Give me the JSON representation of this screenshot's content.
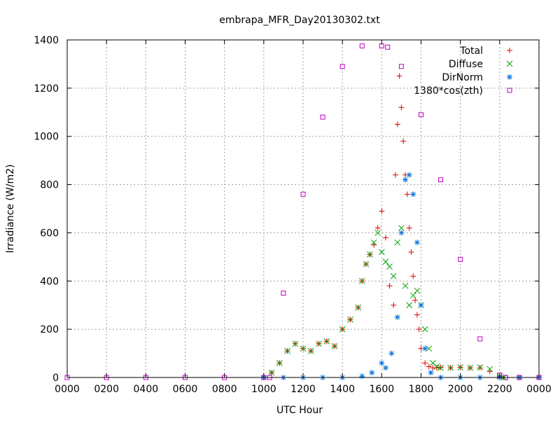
{
  "chart_data": {
    "type": "scatter",
    "title": "embrapa_MFR_Day20130302.txt",
    "xlabel": "UTC Hour",
    "ylabel": "Irradiance (W/m2)",
    "xlim": [
      0,
      24
    ],
    "ylim": [
      0,
      1400
    ],
    "grid": true,
    "legend_position": "top-right",
    "x_ticks": [
      {
        "value": 0,
        "label": "0000"
      },
      {
        "value": 2,
        "label": "0200"
      },
      {
        "value": 4,
        "label": "0400"
      },
      {
        "value": 6,
        "label": "0600"
      },
      {
        "value": 8,
        "label": "0800"
      },
      {
        "value": 10,
        "label": "1000"
      },
      {
        "value": 12,
        "label": "1200"
      },
      {
        "value": 14,
        "label": "1400"
      },
      {
        "value": 16,
        "label": "1600"
      },
      {
        "value": 18,
        "label": "1800"
      },
      {
        "value": 20,
        "label": "2000"
      },
      {
        "value": 22,
        "label": "2200"
      },
      {
        "value": 24,
        "label": "0000"
      }
    ],
    "y_ticks": [
      0,
      200,
      400,
      600,
      800,
      1000,
      1200,
      1400
    ],
    "series": [
      {
        "name": "Total",
        "marker": "+",
        "color": "#e00000",
        "x": [
          10.4,
          10.8,
          11.2,
          11.6,
          12.0,
          12.4,
          12.8,
          13.2,
          13.6,
          14.0,
          14.4,
          14.8,
          15.0,
          15.2,
          15.4,
          15.6,
          15.8,
          16.0,
          16.2,
          16.4,
          16.6,
          16.7,
          16.8,
          16.9,
          17.0,
          17.1,
          17.2,
          17.3,
          17.4,
          17.5,
          17.6,
          17.7,
          17.8,
          17.9,
          18.0,
          18.2,
          18.4,
          18.6,
          18.8,
          19.0,
          19.5,
          20.0,
          20.5,
          21.0,
          21.5,
          22.0,
          22.2
        ],
        "y": [
          20,
          60,
          110,
          140,
          120,
          110,
          140,
          150,
          130,
          200,
          240,
          290,
          400,
          470,
          510,
          550,
          620,
          690,
          580,
          380,
          300,
          840,
          1050,
          1250,
          1120,
          980,
          840,
          760,
          620,
          520,
          420,
          320,
          260,
          200,
          120,
          60,
          45,
          40,
          40,
          42,
          40,
          42,
          40,
          40,
          25,
          5,
          0
        ]
      },
      {
        "name": "Diffuse",
        "marker": "x",
        "color": "#00a000",
        "x": [
          10.4,
          10.8,
          11.2,
          11.6,
          12.0,
          12.4,
          12.8,
          13.2,
          13.6,
          14.0,
          14.4,
          14.8,
          15.0,
          15.2,
          15.4,
          15.6,
          15.8,
          16.0,
          16.2,
          16.4,
          16.6,
          16.8,
          17.0,
          17.2,
          17.4,
          17.6,
          17.8,
          18.0,
          18.2,
          18.4,
          18.6,
          18.8,
          19.0,
          19.5,
          20.0,
          20.5,
          21.0,
          21.5,
          22.0,
          22.2
        ],
        "y": [
          20,
          60,
          110,
          140,
          120,
          110,
          140,
          150,
          130,
          200,
          240,
          290,
          400,
          470,
          510,
          560,
          600,
          520,
          480,
          460,
          420,
          560,
          620,
          380,
          300,
          340,
          360,
          300,
          200,
          120,
          60,
          45,
          40,
          40,
          42,
          40,
          42,
          35,
          5,
          0
        ]
      },
      {
        "name": "DirNorm",
        "marker": "*",
        "color": "#0070e0",
        "x": [
          10.0,
          11.0,
          12.0,
          13.0,
          14.0,
          15.0,
          15.5,
          16.0,
          16.2,
          16.5,
          16.8,
          17.0,
          17.2,
          17.4,
          17.6,
          17.8,
          18.0,
          18.2,
          18.5,
          19.0,
          20.0,
          21.0,
          22.0,
          23.0,
          24.0
        ],
        "y": [
          0,
          0,
          0,
          0,
          0,
          5,
          20,
          60,
          40,
          100,
          250,
          600,
          820,
          840,
          760,
          560,
          300,
          120,
          20,
          0,
          0,
          0,
          0,
          0,
          0
        ]
      },
      {
        "name": "1380*cos(zth)",
        "marker": "square",
        "color": "#c000c0",
        "x": [
          0,
          2,
          4,
          6,
          8,
          10,
          10.3,
          11,
          12,
          13,
          14,
          15,
          16,
          16.3,
          17,
          18,
          19,
          20,
          21,
          22,
          22.3,
          23,
          24
        ],
        "y": [
          0,
          0,
          0,
          0,
          0,
          0,
          0,
          350,
          760,
          1080,
          1290,
          1375,
          1375,
          1370,
          1290,
          1090,
          820,
          490,
          160,
          10,
          0,
          0,
          0
        ]
      }
    ]
  }
}
